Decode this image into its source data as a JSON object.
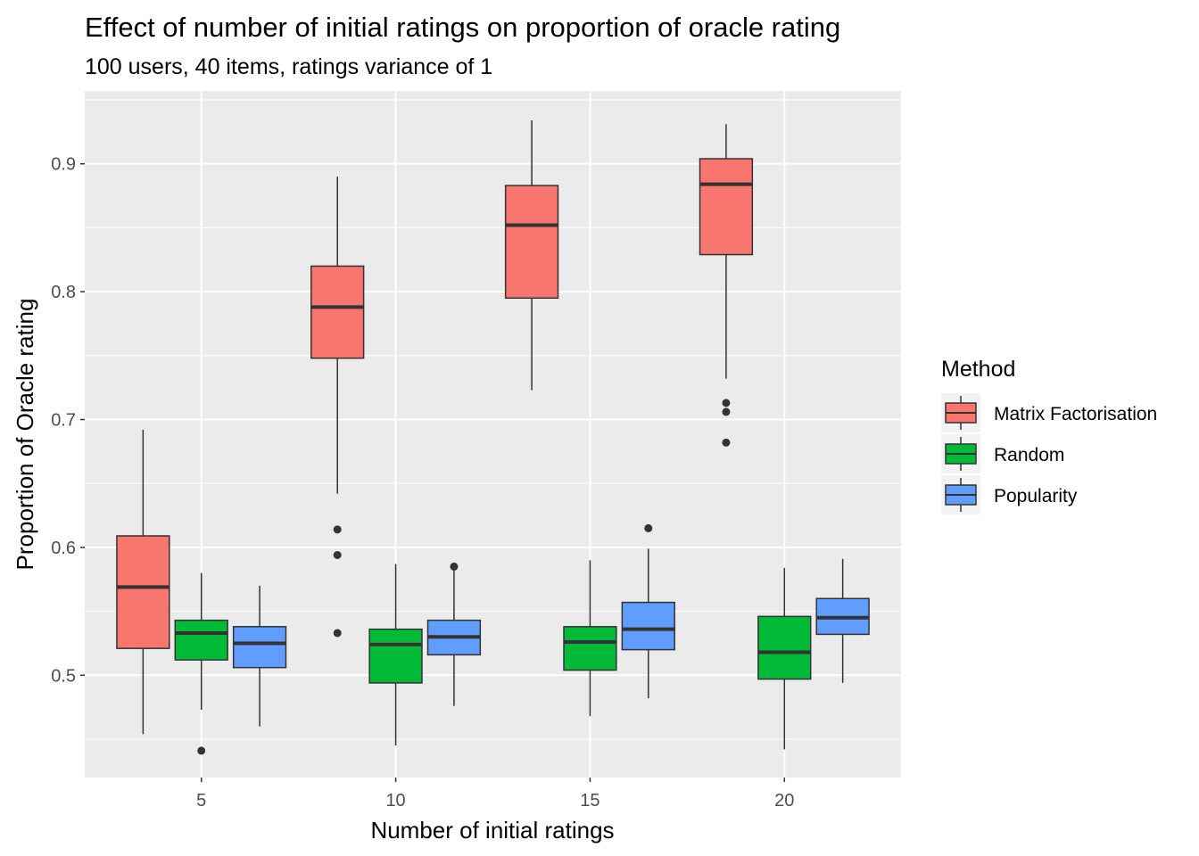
{
  "chart_data": {
    "type": "box",
    "title": "Effect of number of initial ratings on proportion of oracle rating",
    "subtitle": "100 users, 40 items, ratings variance of 1",
    "xlabel": "Number of initial ratings",
    "ylabel": "Proportion of Oracle rating",
    "categories": [
      "5",
      "10",
      "15",
      "20"
    ],
    "ylim": [
      0.42,
      0.957
    ],
    "yticks": [
      0.5,
      0.6,
      0.7,
      0.8,
      0.9
    ],
    "ytick_labels": [
      "0.5",
      "0.6",
      "0.7",
      "0.8",
      "0.9"
    ],
    "grid": true,
    "legend": {
      "title": "Method",
      "position": "right"
    },
    "series": [
      {
        "name": "Matrix Factorisation",
        "color": "#F8766D",
        "boxes": [
          {
            "min": 0.454,
            "q1": 0.521,
            "median": 0.569,
            "q3": 0.609,
            "max": 0.692,
            "outliers": []
          },
          {
            "min": 0.642,
            "q1": 0.748,
            "median": 0.788,
            "q3": 0.82,
            "max": 0.89,
            "outliers": [
              0.614,
              0.594,
              0.533
            ]
          },
          {
            "min": 0.723,
            "q1": 0.795,
            "median": 0.852,
            "q3": 0.883,
            "max": 0.934,
            "outliers": []
          },
          {
            "min": 0.732,
            "q1": 0.829,
            "median": 0.884,
            "q3": 0.904,
            "max": 0.931,
            "outliers": [
              0.713,
              0.706,
              0.682
            ]
          }
        ]
      },
      {
        "name": "Random",
        "color": "#00BA38",
        "boxes": [
          {
            "min": 0.473,
            "q1": 0.512,
            "median": 0.533,
            "q3": 0.543,
            "max": 0.58,
            "outliers": [
              0.441
            ]
          },
          {
            "min": 0.445,
            "q1": 0.494,
            "median": 0.524,
            "q3": 0.536,
            "max": 0.587,
            "outliers": []
          },
          {
            "min": 0.468,
            "q1": 0.504,
            "median": 0.526,
            "q3": 0.538,
            "max": 0.59,
            "outliers": []
          },
          {
            "min": 0.442,
            "q1": 0.497,
            "median": 0.518,
            "q3": 0.546,
            "max": 0.584,
            "outliers": []
          }
        ]
      },
      {
        "name": "Popularity",
        "color": "#619CFF",
        "boxes": [
          {
            "min": 0.46,
            "q1": 0.506,
            "median": 0.525,
            "q3": 0.538,
            "max": 0.57,
            "outliers": []
          },
          {
            "min": 0.476,
            "q1": 0.516,
            "median": 0.53,
            "q3": 0.543,
            "max": 0.585,
            "outliers": [
              0.585
            ]
          },
          {
            "min": 0.482,
            "q1": 0.52,
            "median": 0.536,
            "q3": 0.557,
            "max": 0.599,
            "outliers": [
              0.615
            ]
          },
          {
            "min": 0.494,
            "q1": 0.532,
            "median": 0.545,
            "q3": 0.56,
            "max": 0.591,
            "outliers": []
          }
        ]
      }
    ]
  }
}
